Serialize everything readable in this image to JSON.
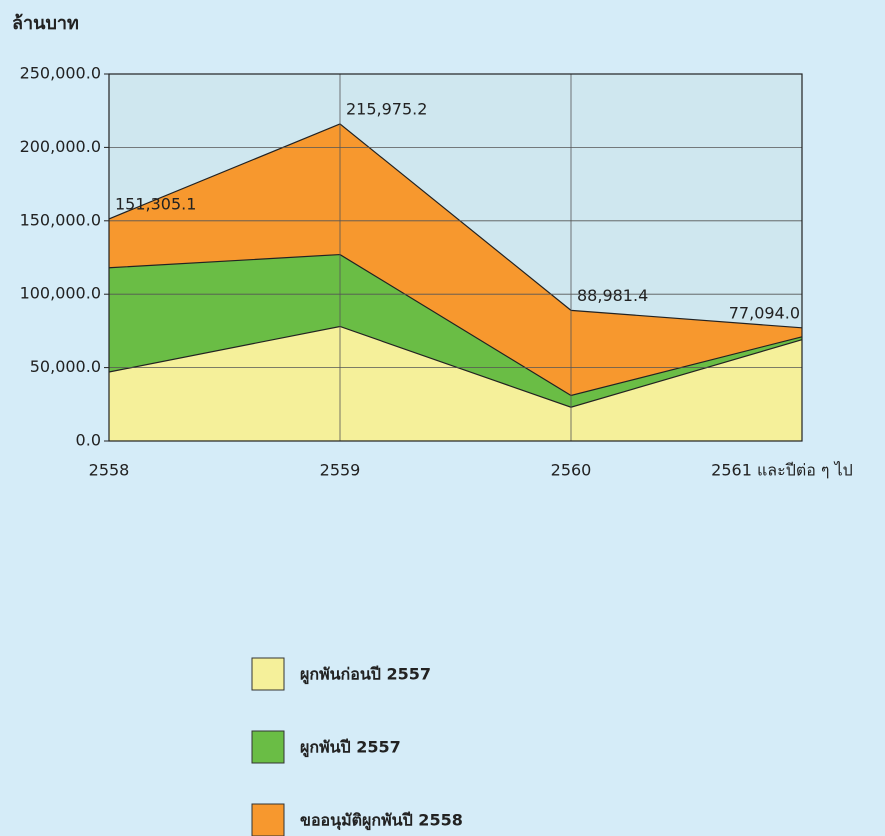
{
  "chart_data": {
    "type": "stacked-area",
    "y_axis_label": "ล้านบาท",
    "categories": [
      "2558",
      "2559",
      "2560",
      "2561 และปีต่อ ๆ ไป"
    ],
    "series": [
      {
        "name": "ผูกพันก่อนปี 2557",
        "color": "#f5f09a",
        "values": [
          47000,
          78000,
          23000,
          69000
        ]
      },
      {
        "name": "ผูกพันปี 2557",
        "color": "#6abd45",
        "values": [
          71000,
          49000,
          8000,
          2000
        ]
      },
      {
        "name": "ขออนุมัติผูกพันปี 2558",
        "color": "#f7982e",
        "values": [
          33305.1,
          88975.2,
          57981.4,
          6094.0
        ]
      }
    ],
    "totals": {
      "values": [
        151305.1,
        215975.2,
        88981.4,
        77094.0
      ],
      "value_labels": [
        "151,305.1",
        "215,975.2",
        "88,981.4",
        "77,094.0"
      ]
    },
    "ylim": [
      0,
      250000
    ],
    "yticks": [
      {
        "value": 0,
        "label": "0.0"
      },
      {
        "value": 50000,
        "label": "50,000.0"
      },
      {
        "value": 100000,
        "label": "100,000.0"
      },
      {
        "value": 150000,
        "label": "150,000.0"
      },
      {
        "value": 200000,
        "label": "200,000.0"
      },
      {
        "value": 250000,
        "label": "250,000.0"
      }
    ],
    "grid": true
  }
}
